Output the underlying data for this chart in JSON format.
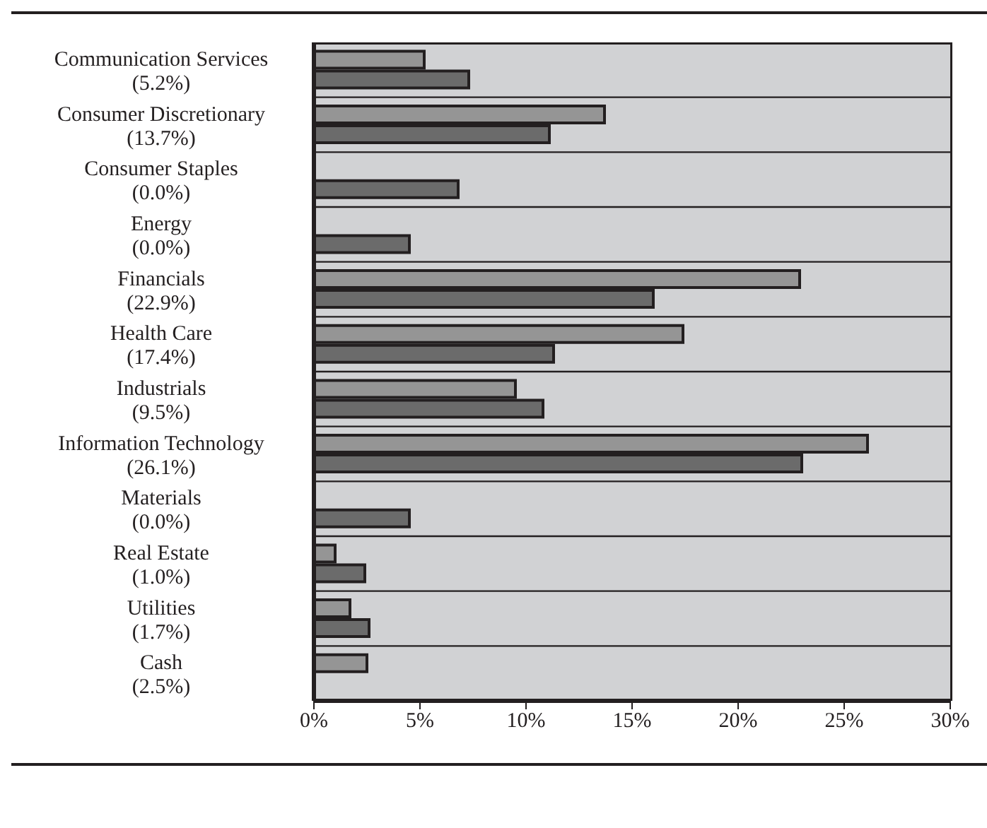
{
  "chart_data": {
    "type": "bar",
    "orientation": "horizontal",
    "categories": [
      "Communication Services",
      "Consumer Discretionary",
      "Consumer Staples",
      "Energy",
      "Financials",
      "Health Care",
      "Industrials",
      "Information Technology",
      "Materials",
      "Real Estate",
      "Utilities",
      "Cash"
    ],
    "series": [
      {
        "color": "#959595",
        "values": [
          5.2,
          13.7,
          0.0,
          0.0,
          22.9,
          17.4,
          9.5,
          26.1,
          0.0,
          1.0,
          1.7,
          2.5
        ],
        "value_labels": [
          "(5.2%)",
          "(13.7%)",
          "(0.0%)",
          "(0.0%)",
          "(22.9%)",
          "(17.4%)",
          "(9.5%)",
          "(26.1%)",
          "(0.0%)",
          "(1.0%)",
          "(1.7%)",
          "(2.5%)"
        ]
      },
      {
        "color": "#6b6b6b",
        "values": [
          7.3,
          11.1,
          6.8,
          4.5,
          16.0,
          11.3,
          10.8,
          23.0,
          4.5,
          2.4,
          2.6,
          0
        ]
      }
    ],
    "xlim": [
      0,
      30
    ],
    "xticks": [
      {
        "value": 0,
        "label": "0%"
      },
      {
        "value": 5,
        "label": "5%"
      },
      {
        "value": 10,
        "label": "10%"
      },
      {
        "value": 15,
        "label": "15%"
      },
      {
        "value": 20,
        "label": "20%"
      },
      {
        "value": 25,
        "label": "25%"
      },
      {
        "value": 30,
        "label": "30%"
      }
    ],
    "grid": "y"
  }
}
